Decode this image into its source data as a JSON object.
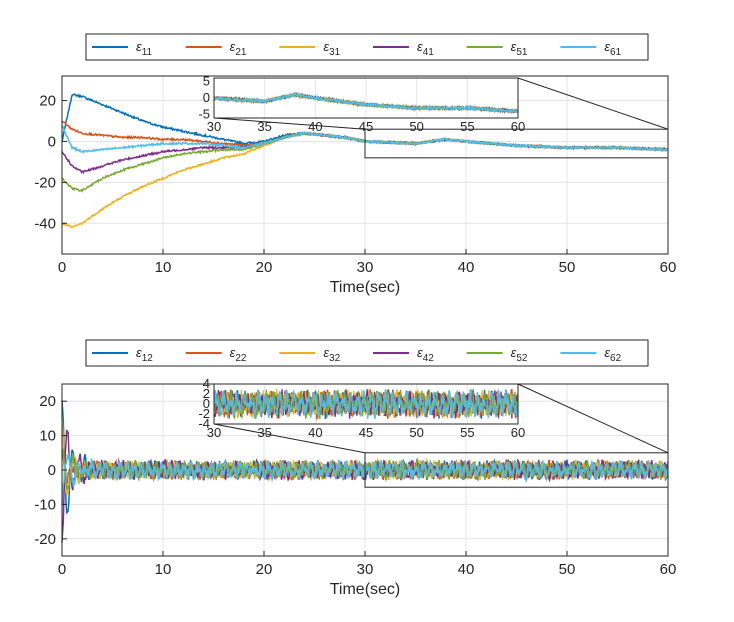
{
  "chart_data": [
    {
      "type": "line",
      "xlabel": "Time(sec)",
      "ylabel": "",
      "xlim": [
        0,
        60
      ],
      "ylim": [
        -55,
        32
      ],
      "xticks": [
        "0",
        "10",
        "20",
        "30",
        "40",
        "50",
        "60"
      ],
      "yticks": [
        "-40",
        "-20",
        "0",
        "20"
      ],
      "grid": true,
      "legend_position": "top",
      "series": [
        {
          "name": "ε",
          "sub": "11",
          "color": "#0072BD",
          "x": [
            0,
            1,
            2,
            4,
            6,
            8,
            10,
            12,
            14,
            16,
            18,
            20,
            22,
            24,
            26,
            28,
            30,
            35,
            38,
            40,
            45,
            50,
            55,
            60
          ],
          "values": [
            0,
            23,
            22,
            18,
            14,
            10,
            7,
            5,
            3,
            1,
            -1,
            0,
            3,
            4,
            3,
            2,
            0,
            -1,
            1,
            0,
            -2,
            -3,
            -3,
            -4
          ]
        },
        {
          "name": "ε",
          "sub": "21",
          "color": "#D95319",
          "x": [
            0,
            1,
            2,
            4,
            6,
            8,
            10,
            12,
            14,
            16,
            18,
            20,
            22,
            24,
            26,
            28,
            30,
            35,
            38,
            40,
            45,
            50,
            55,
            60
          ],
          "values": [
            10,
            6,
            4,
            3,
            2,
            2,
            1,
            1,
            0,
            -1,
            -2,
            -1,
            2,
            4,
            3,
            2,
            0,
            -1,
            1,
            0,
            -2,
            -3,
            -3,
            -4
          ]
        },
        {
          "name": "ε",
          "sub": "31",
          "color": "#EDB120",
          "x": [
            0,
            1,
            2,
            4,
            6,
            8,
            10,
            12,
            14,
            16,
            18,
            20,
            22,
            24,
            26,
            28,
            30,
            35,
            38,
            40,
            45,
            50,
            55,
            60
          ],
          "values": [
            -40,
            -42,
            -40,
            -33,
            -27,
            -22,
            -18,
            -14,
            -11,
            -8,
            -6,
            -2,
            2,
            4,
            3,
            2,
            0,
            -1,
            1,
            0,
            -2,
            -3,
            -3,
            -4
          ]
        },
        {
          "name": "ε",
          "sub": "41",
          "color": "#7E2F8E",
          "x": [
            0,
            1,
            2,
            4,
            6,
            8,
            10,
            12,
            14,
            16,
            18,
            20,
            22,
            24,
            26,
            28,
            30,
            35,
            38,
            40,
            45,
            50,
            55,
            60
          ],
          "values": [
            -5,
            -12,
            -15,
            -12,
            -9,
            -7,
            -5,
            -4,
            -3,
            -3,
            -3,
            -1,
            2,
            4,
            3,
            2,
            0,
            -1,
            1,
            0,
            -2,
            -3,
            -3,
            -4
          ]
        },
        {
          "name": "ε",
          "sub": "51",
          "color": "#77AC30",
          "x": [
            0,
            1,
            2,
            4,
            6,
            8,
            10,
            12,
            14,
            16,
            18,
            20,
            22,
            24,
            26,
            28,
            30,
            35,
            38,
            40,
            45,
            50,
            55,
            60
          ],
          "values": [
            -18,
            -23,
            -24,
            -18,
            -14,
            -11,
            -8,
            -6,
            -5,
            -4,
            -4,
            -1,
            2,
            4,
            3,
            2,
            0,
            -1,
            1,
            0,
            -2,
            -3,
            -3,
            -4
          ]
        },
        {
          "name": "ε",
          "sub": "61",
          "color": "#4DBEEE",
          "x": [
            0,
            1,
            2,
            4,
            6,
            8,
            10,
            12,
            14,
            16,
            18,
            20,
            22,
            24,
            26,
            28,
            30,
            35,
            38,
            40,
            45,
            50,
            55,
            60
          ],
          "values": [
            8,
            -3,
            -5,
            -4,
            -3,
            -2,
            -1,
            -1,
            -1,
            -2,
            -3,
            -1,
            2,
            4,
            3,
            2,
            0,
            -1,
            1,
            0,
            -2,
            -3,
            -3,
            -4
          ]
        }
      ],
      "inset": {
        "xlim": [
          30,
          60
        ],
        "ylim": [
          -6,
          6
        ],
        "xticks": [
          "30",
          "35",
          "40",
          "45",
          "50",
          "55",
          "60"
        ],
        "yticks": [
          "-5",
          "0",
          "5"
        ],
        "source_xrange": [
          30,
          60
        ],
        "source_yrange": [
          -8,
          6
        ]
      }
    },
    {
      "type": "line",
      "xlabel": "Time(sec)",
      "ylabel": "",
      "xlim": [
        0,
        60
      ],
      "ylim": [
        -25,
        25
      ],
      "xticks": [
        "0",
        "10",
        "20",
        "30",
        "40",
        "50",
        "60"
      ],
      "yticks": [
        "-20",
        "-10",
        "0",
        "10",
        "20"
      ],
      "grid": true,
      "legend_position": "top",
      "oscillation_amplitude": 2.5,
      "series": [
        {
          "name": "ε",
          "sub": "12",
          "color": "#0072BD",
          "initial": 20
        },
        {
          "name": "ε",
          "sub": "22",
          "color": "#D95319",
          "initial": 5
        },
        {
          "name": "ε",
          "sub": "32",
          "color": "#EDB120",
          "initial": 15
        },
        {
          "name": "ε",
          "sub": "42",
          "color": "#7E2F8E",
          "initial": -20
        },
        {
          "name": "ε",
          "sub": "52",
          "color": "#77AC30",
          "initial": 8
        },
        {
          "name": "ε",
          "sub": "62",
          "color": "#4DBEEE",
          "initial": -10
        }
      ],
      "inset": {
        "xlim": [
          30,
          60
        ],
        "ylim": [
          -4,
          4
        ],
        "xticks": [
          "30",
          "35",
          "40",
          "45",
          "50",
          "55",
          "60"
        ],
        "yticks": [
          "-4",
          "-2",
          "0",
          "2",
          "4"
        ],
        "source_xrange": [
          30,
          60
        ],
        "source_yrange": [
          -5,
          5
        ]
      }
    }
  ]
}
